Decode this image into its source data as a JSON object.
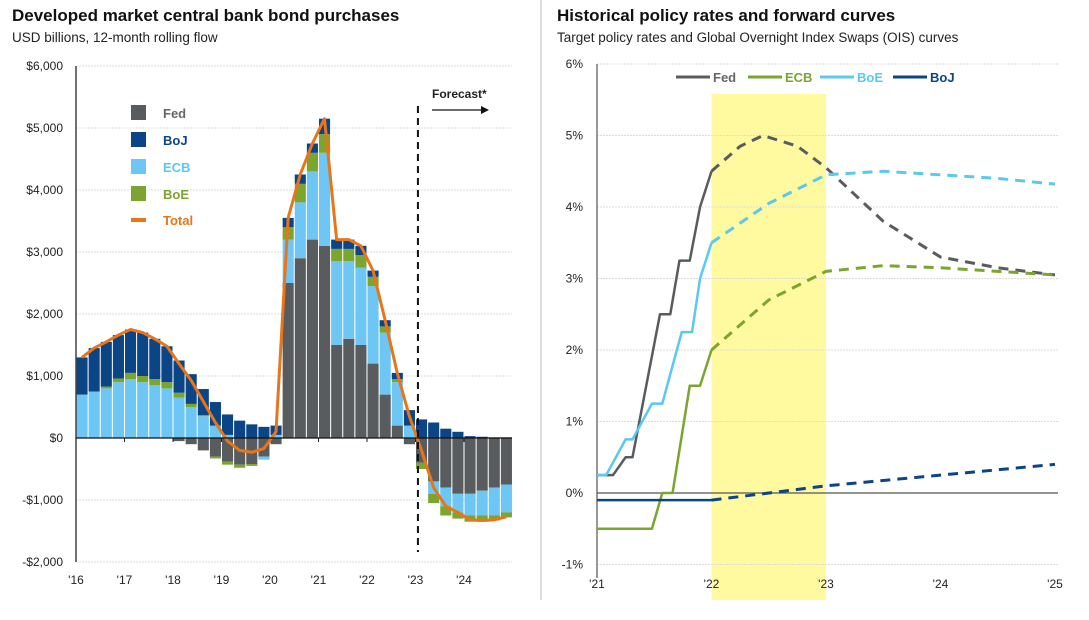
{
  "colors": {
    "fed": "#595c5f",
    "boj": "#0b4586",
    "ecb": "#6ec6f5",
    "boe": "#7ca52f",
    "total": "#e8751a",
    "shade": "#fffaa0",
    "fed_line": "#595c5f",
    "ecb_line": "#7ca52f",
    "boe_line": "#5bc8f0",
    "boj_line": "#0b4586"
  },
  "chart_data": [
    {
      "type": "bar",
      "stacked": true,
      "title": "Developed market central bank bond purchases",
      "subtitle": "USD billions, 12-month rolling flow",
      "ylabel": "USD billions",
      "ylim": [
        -2000,
        6000
      ],
      "yticks": [
        6000,
        5000,
        4000,
        3000,
        2000,
        1000,
        0,
        -1000,
        -2000
      ],
      "ytick_labels": [
        "$6,000",
        "$5,000",
        "$4,000",
        "$3,000",
        "$2,000",
        "$1,000",
        "$0",
        "-$1,000",
        "-$2,000"
      ],
      "xticks": [
        2016,
        2017,
        2018,
        2019,
        2020,
        2021,
        2022,
        2023,
        2024
      ],
      "xtick_labels": [
        "'16",
        "'17",
        "'18",
        "'19",
        "'20",
        "'21",
        "'22",
        "'23",
        "'24"
      ],
      "xlim": [
        2016,
        2025
      ],
      "grid": true,
      "legend": "top-left",
      "annotation": {
        "label": "Forecast*",
        "x": 2023.05
      },
      "x": [
        2016.0,
        2016.25,
        2016.5,
        2016.75,
        2017.0,
        2017.25,
        2017.5,
        2017.75,
        2018.0,
        2018.25,
        2018.5,
        2018.75,
        2019.0,
        2019.25,
        2019.5,
        2019.75,
        2020.0,
        2020.25,
        2020.5,
        2020.75,
        2021.0,
        2021.25,
        2021.5,
        2021.75,
        2022.0,
        2022.25,
        2022.5,
        2022.75,
        2023.0,
        2023.25,
        2023.5,
        2023.75,
        2024.0,
        2024.25,
        2024.5,
        2024.75
      ],
      "series": [
        {
          "name": "Fed",
          "key": "fed",
          "values": [
            0,
            0,
            0,
            0,
            0,
            0,
            0,
            0,
            -50,
            -100,
            -200,
            -300,
            -380,
            -430,
            -420,
            -300,
            -100,
            2500,
            2900,
            3200,
            3100,
            1500,
            1600,
            1500,
            1200,
            700,
            200,
            -100,
            -400,
            -700,
            -800,
            -900,
            -900,
            -850,
            -800,
            -750
          ]
        },
        {
          "name": "BoJ",
          "key": "boj",
          "values": [
            600,
            700,
            720,
            700,
            700,
            700,
            650,
            580,
            520,
            480,
            420,
            380,
            330,
            280,
            220,
            180,
            150,
            150,
            150,
            150,
            250,
            150,
            150,
            150,
            100,
            100,
            100,
            250,
            300,
            250,
            150,
            100,
            30,
            20,
            10,
            10
          ]
        },
        {
          "name": "ECB",
          "key": "ecb",
          "values": [
            700,
            750,
            800,
            900,
            950,
            900,
            850,
            800,
            650,
            500,
            350,
            200,
            50,
            0,
            0,
            -50,
            50,
            700,
            900,
            1100,
            1500,
            1350,
            1250,
            1250,
            1250,
            1000,
            700,
            200,
            0,
            -200,
            -300,
            -300,
            -350,
            -400,
            -450,
            -450
          ]
        },
        {
          "name": "BoE",
          "key": "boe",
          "values": [
            0,
            0,
            30,
            60,
            100,
            100,
            100,
            100,
            80,
            50,
            20,
            -30,
            -50,
            -50,
            -30,
            0,
            0,
            200,
            300,
            300,
            300,
            200,
            200,
            200,
            150,
            100,
            50,
            0,
            -100,
            -150,
            -150,
            -100,
            -100,
            -100,
            -80,
            -80
          ]
        }
      ],
      "total": {
        "name": "Total",
        "key": "total"
      }
    },
    {
      "type": "line",
      "title": "Historical policy rates and forward curves",
      "subtitle": "Target policy rates and Global Overnight Index Swaps (OIS) curves",
      "ylim": [
        -1,
        6
      ],
      "yticks": [
        6,
        5,
        4,
        3,
        2,
        1,
        0,
        -1
      ],
      "ytick_labels": [
        "6%",
        "5%",
        "4%",
        "3%",
        "2%",
        "1%",
        "0%",
        "-1%"
      ],
      "xticks": [
        2021,
        2022,
        2023,
        2024,
        2025
      ],
      "xtick_labels": [
        "'21",
        "'22",
        "'23",
        "'24",
        "'25"
      ],
      "xlim": [
        2021,
        2025
      ],
      "grid": true,
      "legend": "top",
      "shaded_range": [
        2022,
        2023
      ],
      "series": [
        {
          "name": "Fed",
          "key": "fed_line",
          "history": [
            [
              2021.0,
              0.25
            ],
            [
              2021.14,
              0.25
            ],
            [
              2021.25,
              0.5
            ],
            [
              2021.31,
              0.5
            ],
            [
              2021.55,
              2.5
            ],
            [
              2021.64,
              2.5
            ],
            [
              2021.72,
              3.25
            ],
            [
              2021.81,
              3.25
            ],
            [
              2021.9,
              4.0
            ],
            [
              2022.0,
              4.5
            ]
          ],
          "forward": [
            [
              2022.0,
              4.5
            ],
            [
              2022.25,
              4.85
            ],
            [
              2022.45,
              5.0
            ],
            [
              2022.75,
              4.85
            ],
            [
              2023.0,
              4.55
            ],
            [
              2023.5,
              3.8
            ],
            [
              2024.0,
              3.3
            ],
            [
              2024.5,
              3.15
            ],
            [
              2025.0,
              3.05
            ]
          ]
        },
        {
          "name": "ECB",
          "key": "ecb_line",
          "history": [
            [
              2021.0,
              -0.5
            ],
            [
              2021.48,
              -0.5
            ],
            [
              2021.57,
              0
            ],
            [
              2021.66,
              0
            ],
            [
              2021.81,
              1.5
            ],
            [
              2021.9,
              1.5
            ],
            [
              2022.0,
              2.0
            ]
          ],
          "forward": [
            [
              2022.0,
              2.0
            ],
            [
              2022.5,
              2.7
            ],
            [
              2023.0,
              3.1
            ],
            [
              2023.5,
              3.18
            ],
            [
              2024.0,
              3.15
            ],
            [
              2024.5,
              3.1
            ],
            [
              2025.0,
              3.05
            ]
          ]
        },
        {
          "name": "BoE",
          "key": "boe_line",
          "history": [
            [
              2021.0,
              0.25
            ],
            [
              2021.08,
              0.25
            ],
            [
              2021.25,
              0.75
            ],
            [
              2021.31,
              0.75
            ],
            [
              2021.48,
              1.25
            ],
            [
              2021.57,
              1.25
            ],
            [
              2021.74,
              2.25
            ],
            [
              2021.83,
              2.25
            ],
            [
              2021.9,
              3.0
            ],
            [
              2022.0,
              3.5
            ]
          ],
          "forward": [
            [
              2022.0,
              3.5
            ],
            [
              2022.5,
              4.05
            ],
            [
              2023.0,
              4.45
            ],
            [
              2023.5,
              4.5
            ],
            [
              2024.0,
              4.45
            ],
            [
              2024.5,
              4.4
            ],
            [
              2025.0,
              4.32
            ]
          ]
        },
        {
          "name": "BoJ",
          "key": "boj_line",
          "history": [
            [
              2021.0,
              -0.1
            ],
            [
              2022.0,
              -0.1
            ]
          ],
          "forward": [
            [
              2022.0,
              -0.1
            ],
            [
              2023.0,
              0.1
            ],
            [
              2024.0,
              0.25
            ],
            [
              2025.0,
              0.4
            ]
          ]
        }
      ]
    }
  ]
}
